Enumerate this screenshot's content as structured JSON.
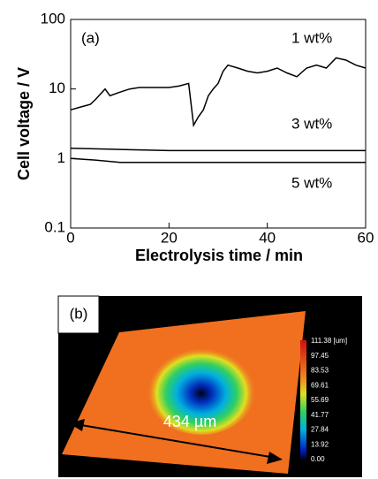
{
  "chart_data": {
    "type": "line",
    "panel_label": "(a)",
    "xlabel": "Electrolysis time / min",
    "ylabel": "Cell voltage / V",
    "xlim": [
      0,
      60
    ],
    "xticks": [
      0,
      20,
      40,
      60
    ],
    "ylim": [
      0.1,
      100
    ],
    "yticks": [
      0.1,
      1,
      10,
      100
    ],
    "yscale": "log",
    "series": [
      {
        "name": "1 wt%",
        "color": "#000000",
        "x": [
          0,
          2,
          4,
          5,
          7,
          8,
          10,
          12,
          14,
          16,
          18,
          20,
          22,
          24,
          25,
          26,
          27,
          28,
          29,
          30,
          31,
          32,
          34,
          36,
          38,
          40,
          42,
          44,
          46,
          48,
          50,
          52,
          54,
          56,
          58,
          60
        ],
        "values": [
          5,
          5.5,
          6,
          7,
          10,
          8,
          9,
          10,
          10.5,
          10.5,
          10.5,
          10.5,
          11,
          12,
          3,
          4,
          5,
          8,
          10,
          12,
          18,
          22,
          20,
          18,
          17,
          18,
          20,
          17,
          15,
          20,
          22,
          20,
          28,
          26,
          22,
          20
        ]
      },
      {
        "name": "3 wt%",
        "color": "#000000",
        "x": [
          0,
          10,
          20,
          30,
          40,
          50,
          60
        ],
        "values": [
          1.4,
          1.35,
          1.3,
          1.3,
          1.3,
          1.3,
          1.3
        ]
      },
      {
        "name": "5 wt%",
        "color": "#000000",
        "x": [
          0,
          5,
          10,
          20,
          30,
          40,
          50,
          60
        ],
        "values": [
          1.0,
          0.95,
          0.88,
          0.88,
          0.88,
          0.88,
          0.88,
          0.88
        ]
      }
    ]
  },
  "image_panel": {
    "panel_label": "(b)",
    "scale_label": "434 µm",
    "colorbar_labels": [
      "111.38 [um]",
      "97.45",
      "83.53",
      "69.61",
      "55.69",
      "41.77",
      "27.84",
      "13.92",
      "0.00"
    ]
  }
}
